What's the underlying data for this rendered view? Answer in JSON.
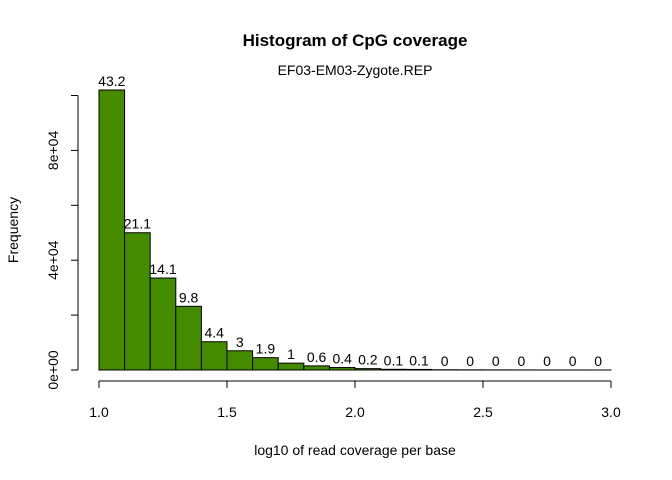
{
  "chart_data": {
    "type": "bar",
    "title": "Histogram of CpG coverage",
    "subtitle": "EF03-EM03-Zygote.REP",
    "xlabel": "log10 of read coverage per base",
    "ylabel": "Frequency",
    "bin_edges": [
      1.0,
      1.1,
      1.2,
      1.3,
      1.4,
      1.5,
      1.6,
      1.7,
      1.8,
      1.9,
      2.0,
      2.1,
      2.2,
      2.3,
      2.4,
      2.5,
      2.6,
      2.7,
      2.8,
      2.9,
      3.0
    ],
    "values": [
      102000,
      50000,
      33500,
      23200,
      10300,
      7000,
      4500,
      2500,
      1500,
      900,
      500,
      250,
      200,
      80,
      60,
      40,
      30,
      20,
      15,
      10
    ],
    "bar_labels": [
      "43.2",
      "21.1",
      "14.1",
      "9.8",
      "4.4",
      "3",
      "1.9",
      "1",
      "0.6",
      "0.4",
      "0.2",
      "0.1",
      "0.1",
      "0",
      "0",
      "0",
      "0",
      "0",
      "0",
      "0"
    ],
    "xlim": [
      1.0,
      3.0
    ],
    "ylim": [
      0,
      102000
    ],
    "x_ticks": [
      1.0,
      1.5,
      2.0,
      2.5,
      3.0
    ],
    "x_tick_labels": [
      "1.0",
      "1.5",
      "2.0",
      "2.5",
      "3.0"
    ],
    "y_ticks": [
      0,
      20000,
      40000,
      60000,
      80000,
      100000
    ],
    "y_tick_labels": [
      "0e+00",
      "",
      "4e+04",
      "",
      "8e+04",
      ""
    ],
    "bar_color": "#458b00",
    "grid": false
  }
}
